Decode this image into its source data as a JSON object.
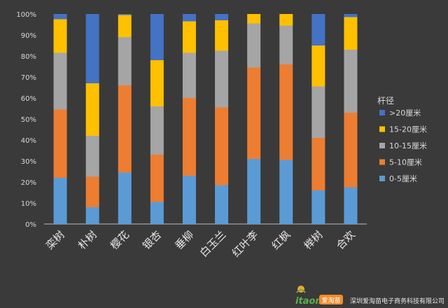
{
  "chart_data": {
    "type": "bar",
    "stacked": true,
    "percent": true,
    "categories": [
      "栾树",
      "朴树",
      "樱花",
      "银杏",
      "垂柳",
      "白玉兰",
      "红叶李",
      "红枫",
      "榉树",
      "合欢"
    ],
    "series": [
      {
        "name": "0-5厘米",
        "color": "#5B9BD5",
        "values": [
          22,
          8,
          24.5,
          10.5,
          23,
          18.5,
          31,
          30.5,
          16,
          17.5
        ]
      },
      {
        "name": "5-10厘米",
        "color": "#ED7D31",
        "values": [
          32.5,
          14.5,
          41.5,
          22.5,
          37,
          37,
          43.5,
          45.5,
          25,
          35.5
        ]
      },
      {
        "name": "10-15厘米",
        "color": "#A5A5A5",
        "values": [
          27,
          19.5,
          23,
          23,
          21.5,
          27,
          21,
          18.5,
          24.5,
          30
        ]
      },
      {
        "name": "15-20厘米",
        "color": "#FFC000",
        "values": [
          16,
          25,
          10.5,
          22,
          15,
          14.5,
          4.5,
          5.5,
          19.5,
          15.5
        ]
      },
      {
        "name": ">20厘米",
        "color": "#4472C4",
        "values": [
          2.5,
          33,
          0.5,
          22,
          3.5,
          3,
          0,
          0,
          15,
          1.5
        ]
      }
    ],
    "yticks": [
      "0%",
      "10%",
      "20%",
      "30%",
      "40%",
      "50%",
      "60%",
      "70%",
      "80%",
      "90%",
      "100%"
    ],
    "ylim": [
      0,
      100
    ],
    "legend_title": "杆径",
    "legend_position": "right",
    "legend_order": [
      ">20厘米",
      "15-20厘米",
      "10-15厘米",
      "5-10厘米",
      "0-5厘米"
    ],
    "grid": false
  },
  "watermark": {
    "logo_text": "itaomiao",
    "badge_text": "爱淘苗",
    "company": "深圳爱淘苗电子商务科技有限公司"
  }
}
